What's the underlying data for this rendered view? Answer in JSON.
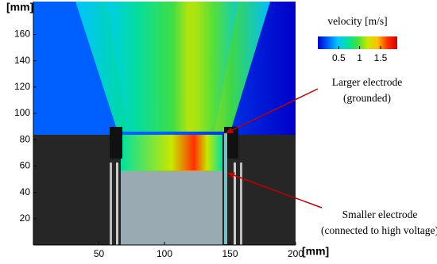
{
  "chart_data": {
    "type": "image",
    "x_label": "[mm]",
    "y_label": "[mm]",
    "xlim": [
      0,
      200
    ],
    "ylim": [
      0,
      185
    ],
    "xticks": [
      50,
      100,
      150,
      200
    ],
    "yticks": [
      20,
      40,
      60,
      80,
      100,
      120,
      140,
      160
    ],
    "colorbar": {
      "label": "velocity [m/s]",
      "lim": [
        0,
        1.9
      ],
      "ticks": [
        0.5,
        1,
        1.5
      ],
      "colors": [
        "#0000c8",
        "#0060ff",
        "#00c8ff",
        "#00e0a0",
        "#40e040",
        "#c8e800",
        "#ffc000",
        "#ff3000",
        "#d00000"
      ]
    },
    "annotations": [
      {
        "lines": [
          "Larger electrode",
          "(grounded)"
        ],
        "color": "#c00000"
      },
      {
        "lines": [
          "Smaller electrode",
          "(connected to high voltage)"
        ],
        "color": "#c00000"
      }
    ]
  }
}
